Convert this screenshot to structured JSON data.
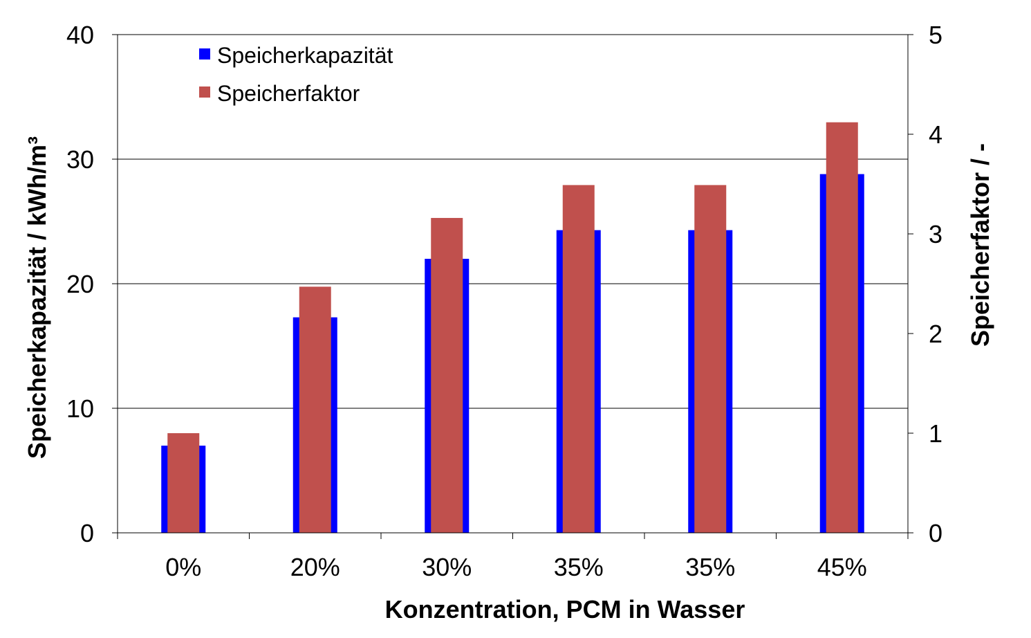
{
  "chart_data": {
    "type": "bar",
    "categories": [
      "0%",
      "20%",
      "30%",
      "35%",
      "35%",
      "45%"
    ],
    "series": [
      {
        "name": "Speicherkapazität",
        "axis": "left",
        "color": "#0000ff",
        "values": [
          7.0,
          17.3,
          22.0,
          24.3,
          24.3,
          28.8
        ]
      },
      {
        "name": "Speicherfaktor",
        "axis": "right",
        "color": "#c0504d",
        "values": [
          1.0,
          2.47,
          3.16,
          3.49,
          3.49,
          4.12
        ]
      }
    ],
    "title": "",
    "xlabel": "Konzentration, PCM in Wasser",
    "ylabel": "Speicherkapazität / kWh/m³",
    "y2label": "Speicherfaktor / -",
    "ylim": [
      0,
      40
    ],
    "y2lim": [
      0,
      5
    ],
    "yticks": [
      "0",
      "10",
      "20",
      "30",
      "40"
    ],
    "y2ticks": [
      "0",
      "1",
      "2",
      "3",
      "4",
      "5"
    ],
    "grid": true,
    "legend_position": "top-left"
  }
}
